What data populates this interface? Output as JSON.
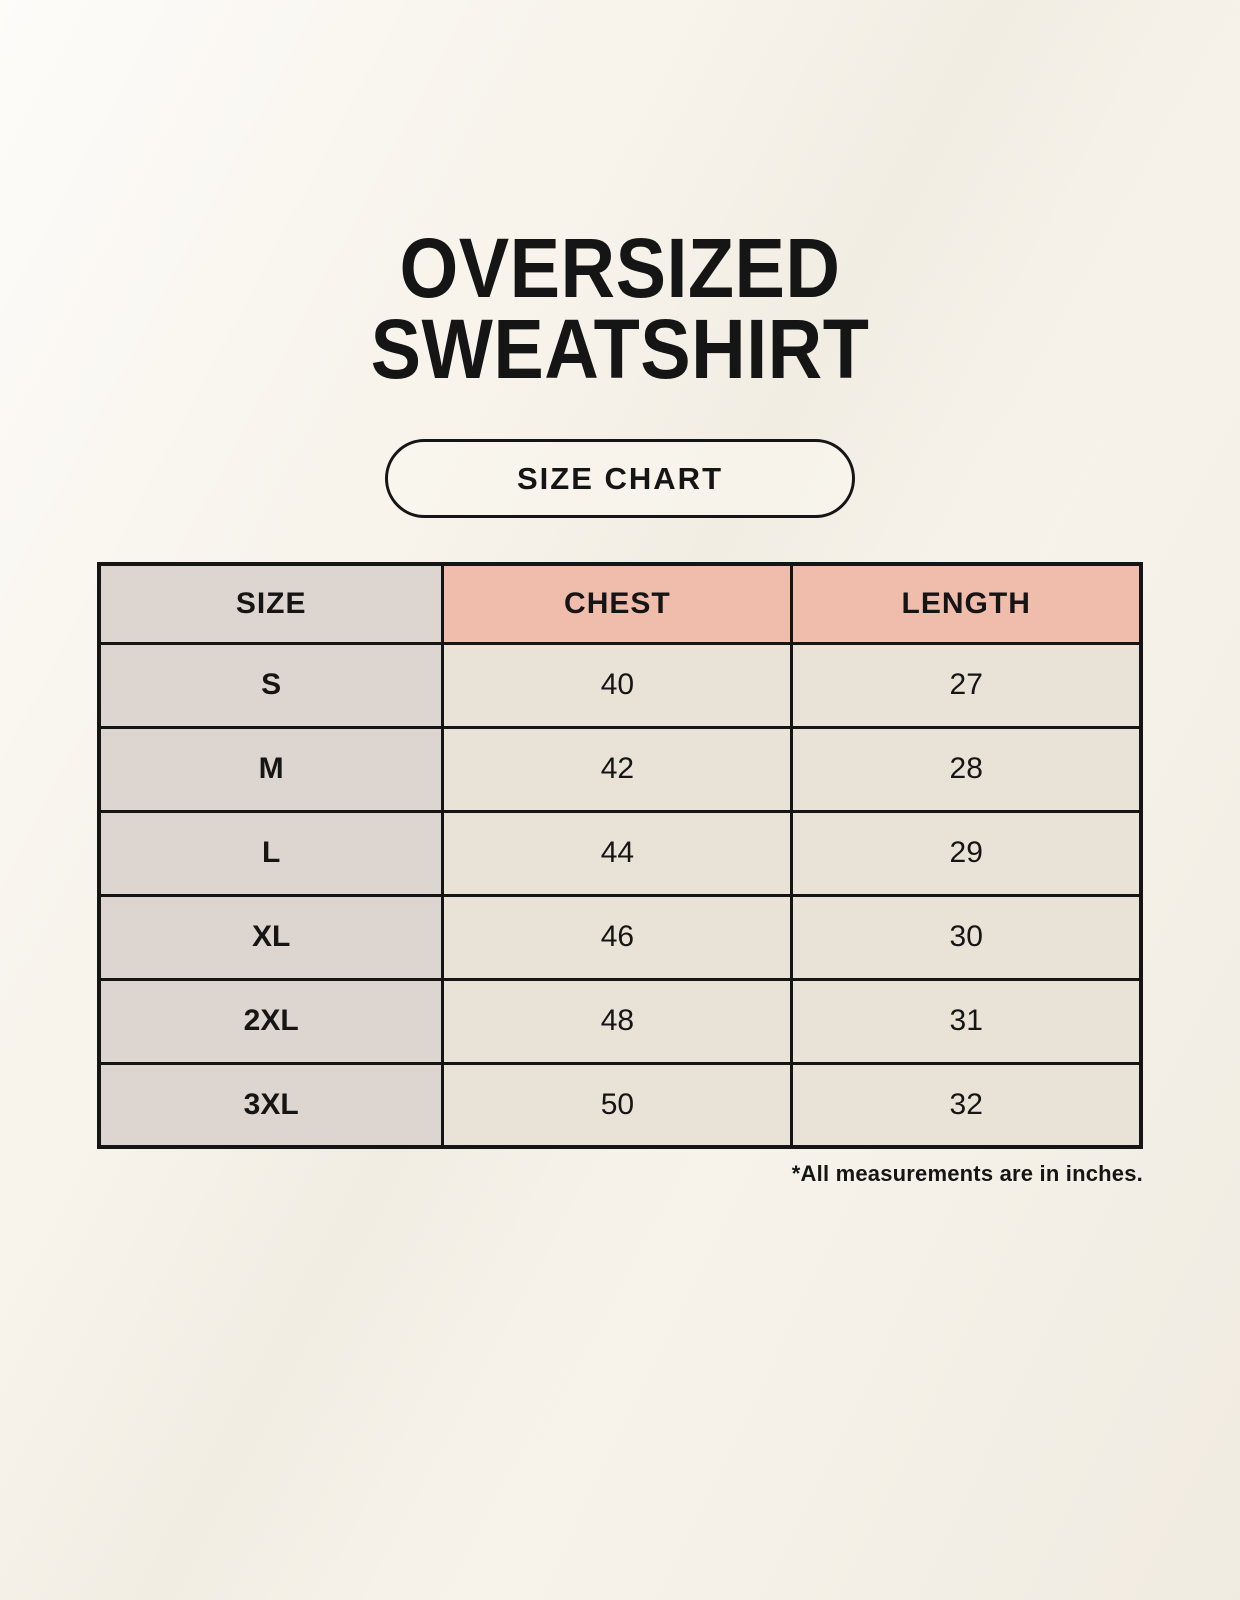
{
  "page": {
    "title_lines": [
      "OVERSIZED",
      "SWEATSHIRT"
    ],
    "badge_label": "SIZE CHART",
    "footnote": "*All measurements are in inches."
  },
  "colors": {
    "page_background": "#f8f4ec",
    "header_accent_pink": "#f0bcab",
    "size_column_gray": "#dcd5d0",
    "value_cell_cream": "#e9e2d6",
    "table_border": "#151515",
    "text": "#151515"
  },
  "chart_data": {
    "type": "table",
    "title": "OVERSIZED SWEATSHIRT",
    "subtitle": "SIZE CHART",
    "columns": [
      "SIZE",
      "CHEST",
      "LENGTH"
    ],
    "rows": [
      {
        "size": "S",
        "chest": 40,
        "length": 27
      },
      {
        "size": "M",
        "chest": 42,
        "length": 28
      },
      {
        "size": "L",
        "chest": 44,
        "length": 29
      },
      {
        "size": "XL",
        "chest": 46,
        "length": 30
      },
      {
        "size": "2XL",
        "chest": 48,
        "length": 31
      },
      {
        "size": "3XL",
        "chest": 50,
        "length": 32
      }
    ],
    "units_note": "*All measurements are in inches."
  }
}
